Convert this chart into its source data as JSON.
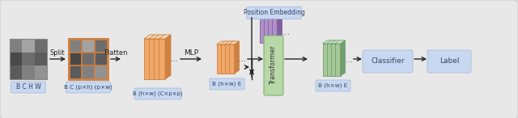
{
  "fig_width": 6.4,
  "fig_height": 1.46,
  "dpi": 100,
  "bg_color": "#e8e8e8",
  "bg_edge_color": "#cccccc",
  "image_label": "B C H W",
  "patch_label": "B C (p×h) (p×w)",
  "flat_label": "B (h×w) (C×p×p)",
  "mlp_label": "B (h×w) E",
  "out_label": "B (h×w) E",
  "pos_label": "Position Embedding",
  "transformer_label": "Transformer",
  "classifier_label": "Classifier",
  "final_label": "Label",
  "arrow_color": "#222222",
  "orange_light": "#f5c89a",
  "orange_mid": "#f0a868",
  "orange_dark": "#d08040",
  "orange_top": "#f8dab8",
  "green_light": "#c0d8b0",
  "green_mid": "#a8c898",
  "green_dark": "#70a070",
  "green_top": "#d8e8d0",
  "purple_light": "#c0a8d8",
  "purple_mid": "#b090c8",
  "purple_dark": "#8060a0",
  "purple_top": "#d0c0e0",
  "label_bg": "#c8d8f0",
  "label_edge": "#a0b8d8",
  "transformer_bg": "#b8d8a8",
  "transformer_edge": "#80b070",
  "classifier_bg": "#c8d8f0",
  "classifier_edge": "#a0b8d8"
}
